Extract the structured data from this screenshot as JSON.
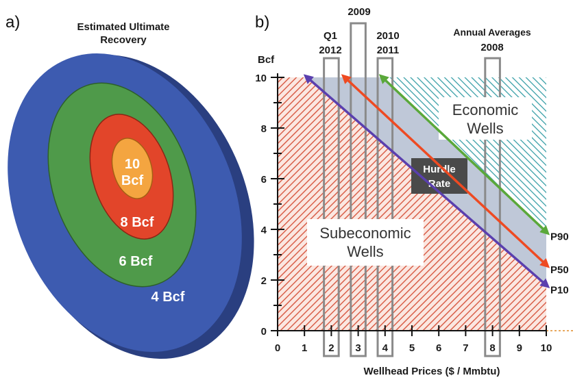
{
  "panel_a": {
    "label": "a)",
    "title_line1": "Estimated Ultimate",
    "title_line2": "Recovery",
    "rings": [
      {
        "label": "4 Bcf",
        "color": "#3d5bb0"
      },
      {
        "label": "6 Bcf",
        "color": "#4f9a4a"
      },
      {
        "label": "8 Bcf",
        "color": "#e2452a"
      },
      {
        "label_line1": "10",
        "label_line2": "Bcf",
        "color": "#f4a540"
      }
    ]
  },
  "panel_b": {
    "label": "b)",
    "annotations": {
      "q1": "Q1",
      "y2012": "2012",
      "y2009": "2009",
      "y2010": "2010",
      "y2011": "2011",
      "annual_line1": "Annual Averages",
      "annual_line2": "2008"
    },
    "regions": {
      "economic_line1": "Economic",
      "economic_line2": "Wells",
      "subeconomic_line1": "Subeconomic",
      "subeconomic_line2": "Wells",
      "hurdle_line1": "Hurdle",
      "hurdle_line2": "Rate"
    },
    "colors": {
      "hatch_red": "#d9604a",
      "hatch_teal": "#3aa0a8",
      "band": "#8a9bb8",
      "hurdle_box": "#4a4a4a",
      "p90": "#5aa83a",
      "p50": "#ee4a22",
      "p10": "#5a3fae",
      "box_outline": "#8a8a8a"
    }
  },
  "chart_data": {
    "type": "line",
    "xlabel": "Wellhead Prices  ($ / Mmbtu)",
    "ylabel": "Bcf",
    "xlim": [
      0,
      10
    ],
    "ylim": [
      0,
      10
    ],
    "xticks": [
      "0",
      "1",
      "2",
      "3",
      "4",
      "5",
      "6",
      "7",
      "8",
      "9",
      "10"
    ],
    "yticks": [
      "0",
      "2",
      "4",
      "6",
      "8",
      "10"
    ],
    "series": [
      {
        "name": "P90",
        "color": "#5aa83a",
        "x": [
          3.9,
          10
        ],
        "y": [
          10,
          3.9
        ]
      },
      {
        "name": "P50",
        "color": "#ee4a22",
        "x": [
          2.5,
          10
        ],
        "y": [
          10,
          2.6
        ]
      },
      {
        "name": "P10",
        "color": "#5a3fae",
        "x": [
          1.1,
          10
        ],
        "y": [
          10,
          1.8
        ]
      }
    ],
    "price_boxes": [
      {
        "x": 2,
        "label": "Q1 2012"
      },
      {
        "x": 3,
        "label": "2009"
      },
      {
        "x": 4,
        "label": "2010 2011"
      },
      {
        "x": 8,
        "label": "2008"
      }
    ]
  }
}
